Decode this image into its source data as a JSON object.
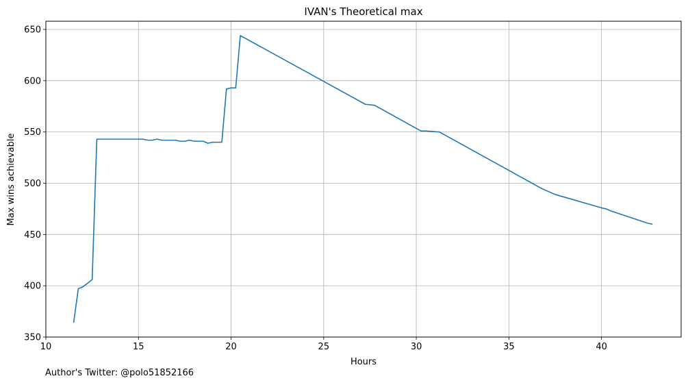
{
  "chart_data": {
    "type": "line",
    "title": "IVAN's Theoretical max",
    "xlabel": "Hours",
    "ylabel": "Max wins achievable",
    "xlim": [
      10,
      44.3
    ],
    "ylim": [
      350,
      658
    ],
    "xticks": [
      10,
      15,
      20,
      25,
      30,
      35,
      40
    ],
    "yticks": [
      350,
      400,
      450,
      500,
      550,
      600,
      650
    ],
    "grid": true,
    "line_color": "#1f77b4",
    "series": [
      {
        "x": [
          11.5,
          11.75,
          12.0,
          12.5,
          12.75,
          13.0,
          15.25,
          15.5,
          15.75,
          16.0,
          16.25,
          17.0,
          17.25,
          17.5,
          17.75,
          18.0,
          18.5,
          18.75,
          19.0,
          19.5,
          19.75,
          20.0,
          20.25,
          20.5,
          27.25,
          27.75,
          30.25,
          30.5,
          31.25,
          36.75,
          37.5,
          40.0,
          40.25,
          40.5,
          42.5,
          42.75
        ],
        "y": [
          364,
          397,
          399,
          406,
          543,
          543,
          543,
          542,
          542,
          543,
          542,
          542,
          541,
          541,
          542,
          541,
          541,
          539,
          540,
          540,
          592,
          593,
          593,
          644,
          577,
          576,
          551,
          551,
          550,
          495,
          489,
          476,
          475,
          473,
          461,
          460
        ]
      }
    ]
  },
  "footer": {
    "text": "Author's Twitter: @polo51852166"
  }
}
